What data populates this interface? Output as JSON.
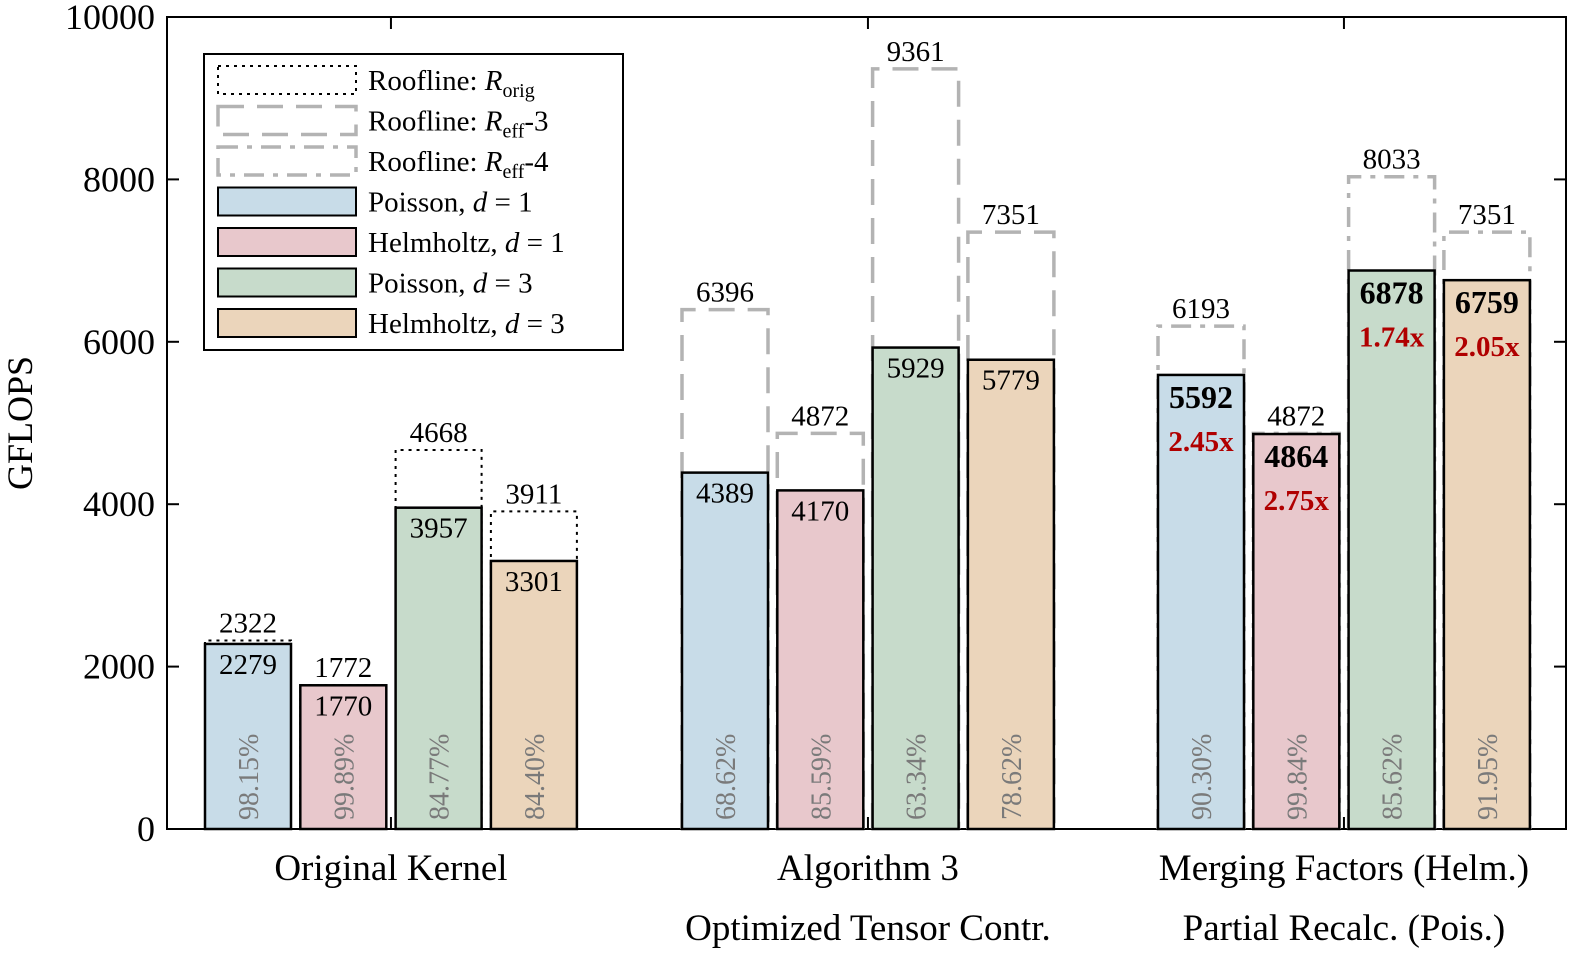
{
  "chart_data": {
    "type": "bar",
    "title": "",
    "xlabel": "",
    "ylabel": "GFLOPS",
    "ylim": [
      0,
      10000
    ],
    "yticks": [
      "0",
      "2000",
      "4000",
      "6000",
      "8000",
      "10000"
    ],
    "ytick_values": [
      0,
      2000,
      4000,
      6000,
      8000,
      10000
    ],
    "categories": [
      {
        "line1": "Original Kernel",
        "line2": ""
      },
      {
        "line1": "Algorithm 3",
        "line2": "Optimized Tensor Contr."
      },
      {
        "line1": "Merging Factors (Helm.)",
        "line2": "Partial Recalc. (Pois.)"
      }
    ],
    "legend": {
      "position": "top-left",
      "entries": [
        {
          "text": "Roofline: ",
          "math": "R",
          "sub": "orig",
          "suffix": "",
          "kind": "roofline",
          "style": "dotted"
        },
        {
          "text": "Roofline: ",
          "math": "R",
          "sub": "eff",
          "suffix": "-3",
          "kind": "roofline",
          "style": "dashed"
        },
        {
          "text": "Roofline: ",
          "math": "R",
          "sub": "eff",
          "suffix": "-4",
          "kind": "roofline",
          "style": "dashdot"
        },
        {
          "text": "Poisson, ",
          "math": "d",
          "sub": "",
          "suffix": " = 1",
          "kind": "series",
          "series": 0
        },
        {
          "text": "Helmholtz, ",
          "math": "d",
          "sub": "",
          "suffix": " = 1",
          "kind": "series",
          "series": 1
        },
        {
          "text": "Poisson, ",
          "math": "d",
          "sub": "",
          "suffix": " = 3",
          "kind": "series",
          "series": 2
        },
        {
          "text": "Helmholtz, ",
          "math": "d",
          "sub": "",
          "suffix": " = 3",
          "kind": "series",
          "series": 3
        }
      ]
    },
    "series": [
      {
        "name": "Poisson, d = 1",
        "color": "#c8dce8",
        "values": [
          2279,
          4389,
          5592
        ],
        "labels": [
          "2279",
          "4389",
          "5592"
        ]
      },
      {
        "name": "Helmholtz, d = 1",
        "color": "#e8c8cc",
        "values": [
          1770,
          4170,
          4864
        ],
        "labels": [
          "1770",
          "4170",
          "4864"
        ]
      },
      {
        "name": "Poisson, d = 3",
        "color": "#c7dbcb",
        "values": [
          3957,
          5929,
          6878
        ],
        "labels": [
          "3957",
          "5929",
          "6878"
        ]
      },
      {
        "name": "Helmholtz, d = 3",
        "color": "#ebd5bb",
        "values": [
          3301,
          5779,
          6759
        ],
        "labels": [
          "3301",
          "5779",
          "6759"
        ]
      }
    ],
    "rooflines": [
      [
        {
          "value": 2322,
          "label": "2322",
          "style": "dotted"
        },
        {
          "value": 1772,
          "label": "1772",
          "style": "dotted"
        },
        {
          "value": 4668,
          "label": "4668",
          "style": "dotted"
        },
        {
          "value": 3911,
          "label": "3911",
          "style": "dotted"
        }
      ],
      [
        {
          "value": 6396,
          "label": "6396",
          "style": "dashed"
        },
        {
          "value": 4872,
          "label": "4872",
          "style": "dashed"
        },
        {
          "value": 9361,
          "label": "9361",
          "style": "dashed"
        },
        {
          "value": 7351,
          "label": "7351",
          "style": "dashed"
        }
      ],
      [
        {
          "value": 6193,
          "label": "6193",
          "style": "dashdot"
        },
        {
          "value": 4872,
          "label": "4872",
          "style": "dashdot"
        },
        {
          "value": 8033,
          "label": "8033",
          "style": "dashdot"
        },
        {
          "value": 7351,
          "label": "7351",
          "style": "dashdot"
        }
      ]
    ],
    "efficiency": [
      [
        "98.15%",
        "99.89%",
        "84.77%",
        "84.40%"
      ],
      [
        "68.62%",
        "85.59%",
        "63.34%",
        "78.62%"
      ],
      [
        "90.30%",
        "99.84%",
        "85.62%",
        "91.95%"
      ]
    ],
    "speedups": [
      [
        null,
        null,
        null,
        null
      ],
      [
        null,
        null,
        null,
        null
      ],
      [
        "2.45x",
        "2.75x",
        "1.74x",
        "2.05x"
      ]
    ],
    "bold_values_group": 2
  },
  "colors": {
    "roofline_stroke": "#b3b3b3",
    "roofline_dotted": "#000000",
    "speedup": "#b00000",
    "efficiency_text": "#7a7a7a"
  }
}
